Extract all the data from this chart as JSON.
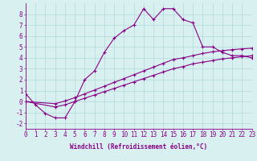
{
  "line1_x": [
    0,
    1,
    2,
    3,
    4,
    5,
    6,
    7,
    8,
    9,
    10,
    11,
    12,
    13,
    14,
    15,
    16,
    17,
    18,
    19,
    20,
    21,
    22,
    23
  ],
  "line1_y": [
    0.7,
    -0.3,
    -1.1,
    -1.5,
    -1.5,
    0.0,
    2.0,
    2.8,
    4.5,
    5.8,
    6.5,
    7.0,
    8.5,
    7.5,
    8.5,
    8.5,
    7.5,
    7.2,
    5.0,
    5.0,
    4.5,
    4.2,
    4.2,
    4.0
  ],
  "line2_x": [
    0,
    3,
    4,
    5,
    6,
    7,
    8,
    9,
    10,
    11,
    12,
    13,
    14,
    15,
    16,
    17,
    18,
    19,
    20,
    21,
    22,
    23
  ],
  "line2_y": [
    0.0,
    -0.5,
    -0.3,
    0.0,
    0.3,
    0.6,
    0.9,
    1.2,
    1.5,
    1.8,
    2.1,
    2.4,
    2.7,
    3.0,
    3.2,
    3.45,
    3.6,
    3.75,
    3.9,
    4.0,
    4.1,
    4.2
  ],
  "line3_x": [
    0,
    3,
    4,
    5,
    6,
    7,
    8,
    9,
    10,
    11,
    12,
    13,
    14,
    15,
    16,
    17,
    18,
    19,
    20,
    21,
    22,
    23
  ],
  "line3_y": [
    0.0,
    -0.2,
    0.05,
    0.35,
    0.7,
    1.05,
    1.4,
    1.75,
    2.1,
    2.45,
    2.8,
    3.15,
    3.5,
    3.85,
    4.0,
    4.2,
    4.4,
    4.55,
    4.65,
    4.75,
    4.82,
    4.88
  ],
  "line_color": "#880088",
  "marker": "+",
  "markersize": 3,
  "linewidth": 0.8,
  "markeredgewidth": 0.8,
  "xlabel": "Windchill (Refroidissement éolien,°C)",
  "xlabel_fontsize": 5.5,
  "ylabel_ticks": [
    -2,
    -1,
    0,
    1,
    2,
    3,
    4,
    5,
    6,
    7,
    8
  ],
  "xtick_labels": [
    "0",
    "1",
    "2",
    "3",
    "4",
    "5",
    "6",
    "7",
    "8",
    "9",
    "10",
    "11",
    "12",
    "13",
    "14",
    "15",
    "16",
    "17",
    "18",
    "19",
    "20",
    "21",
    "22",
    "23"
  ],
  "xlim": [
    0,
    23
  ],
  "ylim": [
    -2.5,
    9.0
  ],
  "bg_color": "#d8f0f0",
  "grid_color": "#b0d8d8",
  "tick_fontsize": 5.5
}
